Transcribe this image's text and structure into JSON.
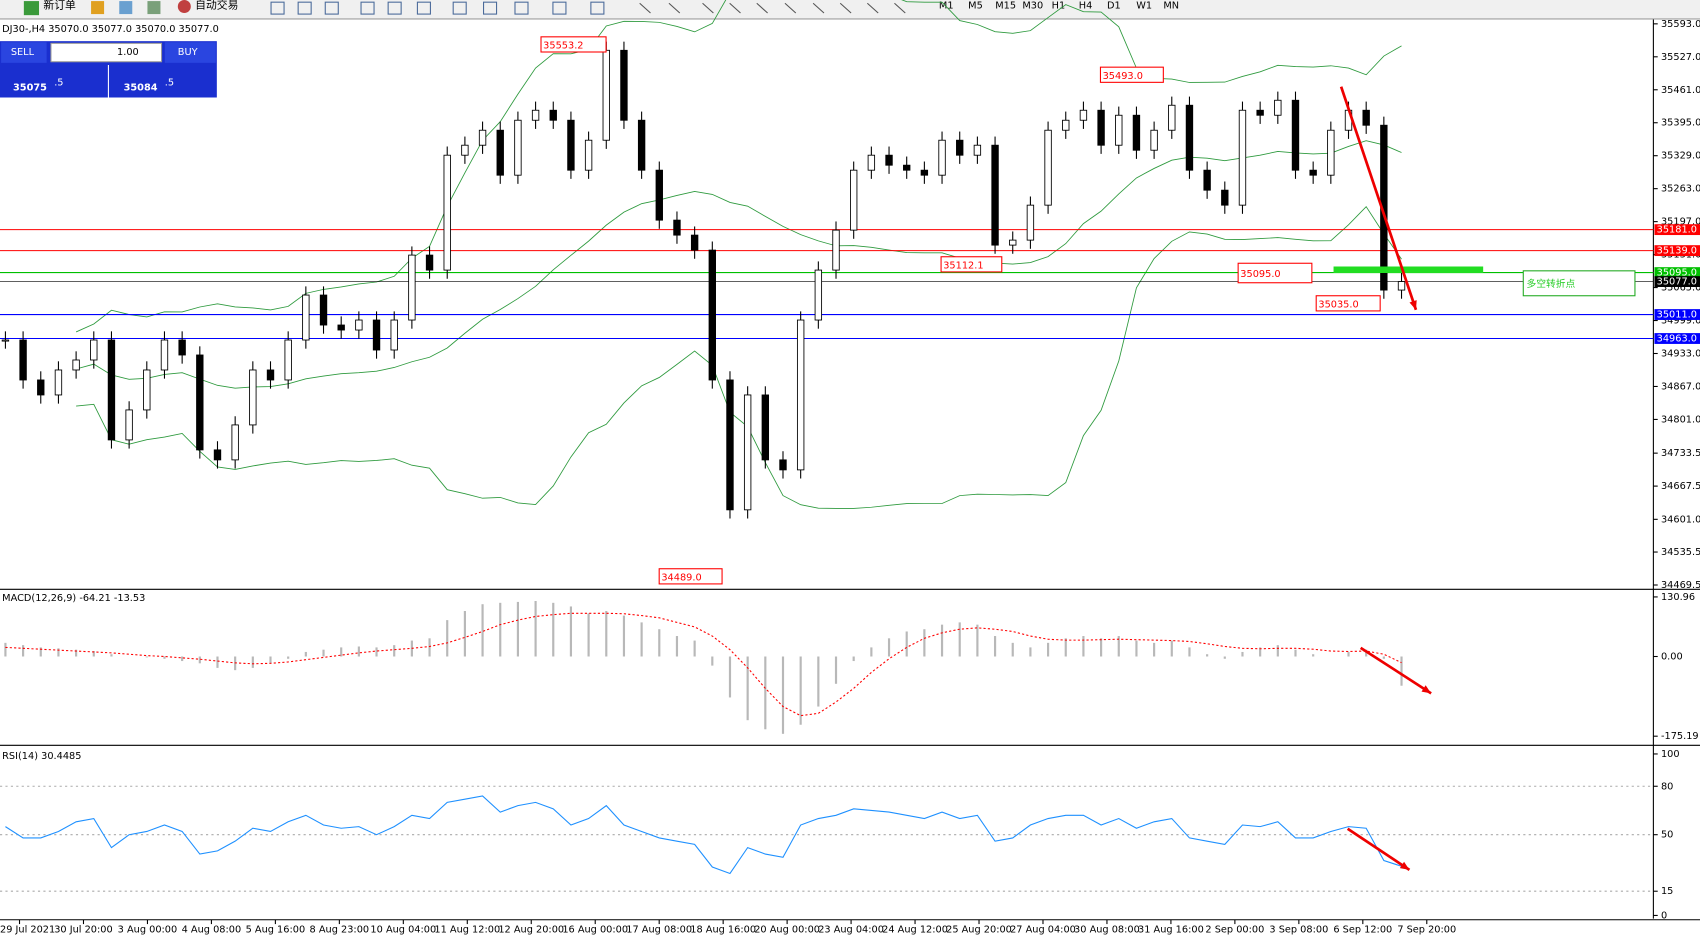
{
  "toolbar": {
    "new_order": "新订单",
    "auto_trading": "自动交易",
    "timeframes": [
      "M1",
      "M5",
      "M15",
      "M30",
      "H1",
      "H4",
      "D1",
      "W1",
      "MN"
    ]
  },
  "trade_panel": {
    "sell": "SELL",
    "buy": "BUY",
    "lot": "1.00",
    "sell_main": "35075",
    "sell_tail": ".5",
    "buy_main": "35084",
    "buy_tail": ".5"
  },
  "chart_data": {
    "type": "candlestick",
    "title": "DJ30-,H4 35070.0 35077.0 35070.0 35077.0",
    "close": [
      34960,
      34880,
      34850,
      34900,
      34920,
      34960,
      34760,
      34820,
      34900,
      34960,
      34930,
      34740,
      34720,
      34790,
      34900,
      34880,
      34960,
      35050,
      34990,
      34980,
      35000,
      34940,
      35000,
      35130,
      35100,
      35330,
      35350,
      35380,
      35290,
      35400,
      35420,
      35400,
      35300,
      35360,
      35540,
      35400,
      35300,
      35200,
      35170,
      35140,
      34880,
      34620,
      34850,
      34720,
      34700,
      35000,
      35100,
      35180,
      35300,
      35330,
      35310,
      35300,
      35290,
      35360,
      35330,
      35350,
      35150,
      35160,
      35230,
      35380,
      35400,
      35420,
      35350,
      35410,
      35340,
      35380,
      35430,
      35300,
      35260,
      35230,
      35420,
      35410,
      35440,
      35300,
      35290,
      35380,
      35420,
      35390,
      35060,
      35077
    ],
    "ylim": [
      34463,
      35601.7
    ],
    "yticks": [
      {
        "value": 35593,
        "label": "35593.0"
      },
      {
        "value": 35527,
        "label": "35527.0"
      },
      {
        "value": 35461,
        "label": "35461.0"
      },
      {
        "value": 35395,
        "label": "35395.0"
      },
      {
        "value": 35329,
        "label": "35329.0"
      },
      {
        "value": 35263,
        "label": "35263.0"
      },
      {
        "value": 35197,
        "label": "35197.0"
      },
      {
        "value": 35131,
        "label": "35131.0"
      },
      {
        "value": 35065,
        "label": "35065.0"
      },
      {
        "value": 34999,
        "label": "34999.0"
      },
      {
        "value": 34933,
        "label": "34933.0"
      },
      {
        "value": 34867,
        "label": "34867.0"
      },
      {
        "value": 34801,
        "label": "34801.0"
      },
      {
        "value": 34733.5,
        "label": "34733.5"
      },
      {
        "value": 34667.5,
        "label": "34667.5"
      },
      {
        "value": 34601,
        "label": "34601.0"
      },
      {
        "value": 34535.5,
        "label": "34535.5"
      },
      {
        "value": 34469.5,
        "label": "34469.5"
      }
    ],
    "levels": [
      {
        "value": 35181,
        "label": "35181.0",
        "color": "#ff0000"
      },
      {
        "value": 35139,
        "label": "35139.0",
        "color": "#ff0000"
      },
      {
        "value": 35095,
        "label": "35095.0",
        "color": "#00c000"
      },
      {
        "value": 35077,
        "label": "35077.0",
        "color": "#000000"
      },
      {
        "value": 35011,
        "label": "35011.0",
        "color": "#0000ff"
      },
      {
        "value": 34963,
        "label": "34963.0",
        "color": "#0000ff"
      }
    ],
    "annotations": [
      "35553.2",
      "35493.0",
      "35112.1",
      "35095.0",
      "35035.0",
      "34489.0"
    ],
    "marker_text": "多空转折点",
    "xtick_labels": [
      "29 Jul 2021",
      "30 Jul 20:00",
      "3 Aug 00:00",
      "4 Aug 08:00",
      "5 Aug 16:00",
      "8 Aug 23:00",
      "10 Aug 04:00",
      "11 Aug 12:00",
      "12 Aug 20:00",
      "16 Aug 00:00",
      "17 Aug 08:00",
      "18 Aug 16:00",
      "20 Aug 00:00",
      "23 Aug 04:00",
      "24 Aug 12:00",
      "25 Aug 20:00",
      "27 Aug 04:00",
      "30 Aug 08:00",
      "31 Aug 16:00",
      "2 Sep 00:00",
      "3 Sep 08:00",
      "6 Sep 12:00",
      "7 Sep 20:00"
    ]
  },
  "macd": {
    "title": "MACD(12,26,9) -64.21 -13.53",
    "histogram": [
      30,
      25,
      20,
      18,
      15,
      12,
      5,
      0,
      -2,
      -5,
      -10,
      -15,
      -25,
      -30,
      -25,
      -15,
      -5,
      10,
      15,
      20,
      22,
      20,
      25,
      35,
      40,
      80,
      100,
      115,
      118,
      120,
      122,
      118,
      110,
      95,
      100,
      90,
      75,
      60,
      45,
      35,
      -20,
      -90,
      -140,
      -160,
      -170,
      -150,
      -110,
      -60,
      -10,
      20,
      40,
      55,
      60,
      70,
      75,
      70,
      45,
      30,
      20,
      30,
      40,
      45,
      40,
      45,
      35,
      30,
      35,
      20,
      5,
      -5,
      10,
      20,
      25,
      15,
      5,
      0,
      10,
      15,
      -5,
      -64.21
    ],
    "signal": [
      20,
      18,
      16,
      14,
      12,
      10,
      8,
      5,
      2,
      0,
      -3,
      -6,
      -10,
      -14,
      -16,
      -15,
      -12,
      -7,
      -2,
      3,
      8,
      12,
      15,
      18,
      22,
      30,
      42,
      55,
      70,
      80,
      88,
      92,
      95,
      95,
      95,
      94,
      90,
      85,
      75,
      65,
      45,
      15,
      -25,
      -70,
      -110,
      -130,
      -125,
      -100,
      -70,
      -35,
      -5,
      20,
      40,
      52,
      60,
      63,
      60,
      55,
      45,
      38,
      36,
      36,
      37,
      38,
      37,
      36,
      35,
      33,
      28,
      22,
      18,
      17,
      18,
      18,
      16,
      12,
      11,
      12,
      5,
      -13.53
    ],
    "ylim": [
      -192.9,
      142.9
    ],
    "yticks": [
      {
        "value": 130.96,
        "label": "130.96"
      },
      {
        "value": 0,
        "label": "0.00"
      },
      {
        "value": -175.19,
        "label": "-175.19"
      }
    ]
  },
  "rsi": {
    "title": "RSI(14) 30.4485",
    "values": [
      55,
      48,
      48,
      52,
      58,
      60,
      42,
      50,
      52,
      56,
      52,
      38,
      40,
      46,
      54,
      52,
      58,
      62,
      56,
      54,
      55,
      50,
      55,
      62,
      60,
      70,
      72,
      74,
      64,
      68,
      70,
      66,
      56,
      60,
      68,
      56,
      52,
      48,
      46,
      44,
      30,
      26,
      42,
      38,
      36,
      56,
      60,
      62,
      66,
      65,
      64,
      62,
      60,
      64,
      60,
      62,
      46,
      48,
      56,
      60,
      62,
      62,
      56,
      60,
      54,
      58,
      60,
      48,
      46,
      44,
      56,
      55,
      58,
      48,
      48,
      52,
      55,
      54,
      34,
      30.4485
    ],
    "ylim": [
      -2,
      104
    ],
    "yticks": [
      100,
      80,
      50,
      15,
      0
    ]
  }
}
